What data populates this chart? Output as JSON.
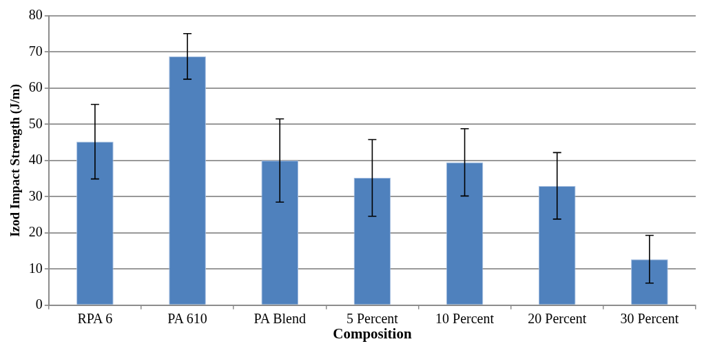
{
  "chart_data": {
    "type": "bar",
    "xlabel": "Composition",
    "ylabel": "Izod Impact Strength (J/m)",
    "categories": [
      "RPA 6",
      "PA 610",
      "PA Blend",
      "5 Percent",
      "10 Percent",
      "20 Percent",
      "30 Percent"
    ],
    "values": [
      45.2,
      68.8,
      40.0,
      35.2,
      39.5,
      33.0,
      12.7
    ],
    "errors": [
      10.3,
      6.3,
      11.5,
      10.6,
      9.3,
      9.2,
      6.6
    ],
    "color": "#4f81bd",
    "ylim": [
      0,
      80
    ],
    "yticks": [
      0,
      10,
      20,
      30,
      40,
      50,
      60,
      70,
      80
    ],
    "grid": "y",
    "legend": false
  }
}
